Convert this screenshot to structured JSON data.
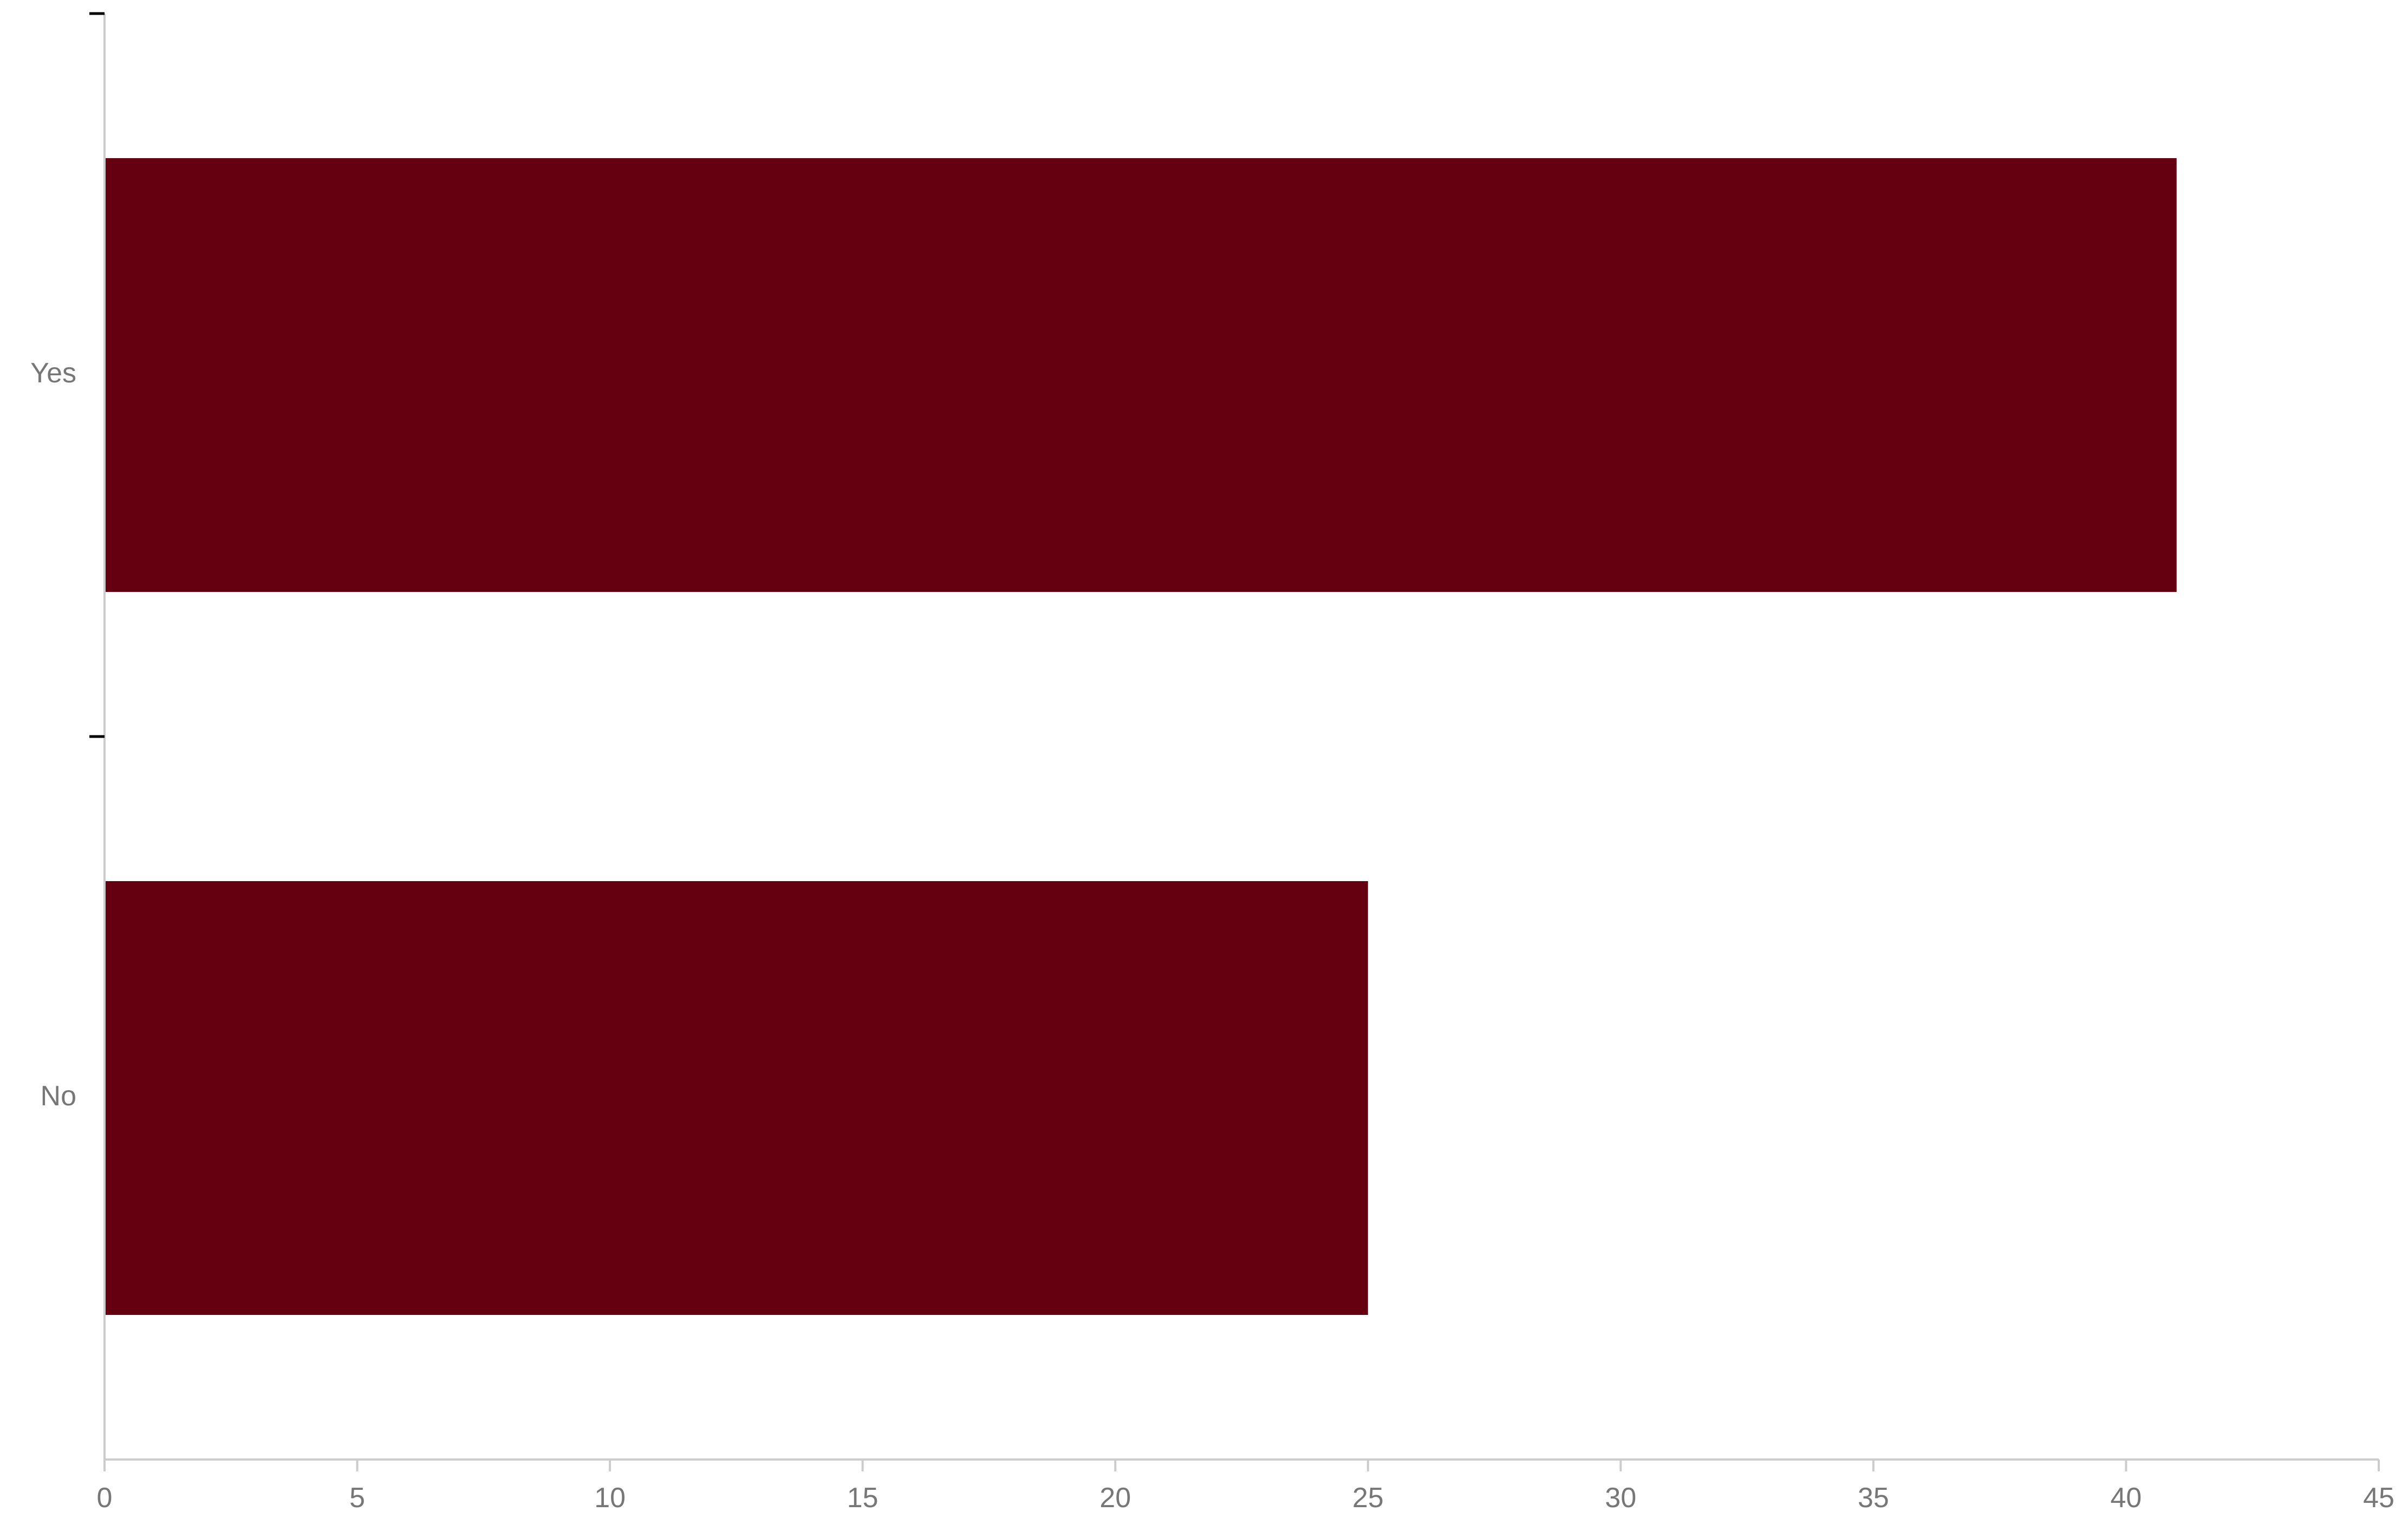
{
  "chart_data": {
    "type": "bar",
    "orientation": "horizontal",
    "categories": [
      "Yes",
      "No"
    ],
    "values": [
      41,
      25
    ],
    "xlim": [
      0,
      45
    ],
    "xticks": [
      "0",
      "5",
      "10",
      "15",
      "20",
      "25",
      "30",
      "35",
      "40",
      "45"
    ],
    "title": "",
    "xlabel": "",
    "ylabel": "",
    "grid": false,
    "legend": "none",
    "colors": {
      "bar": "#64000f",
      "axis": "#cccccc",
      "tick_text": "#777777",
      "category_tick": "#000000"
    }
  }
}
